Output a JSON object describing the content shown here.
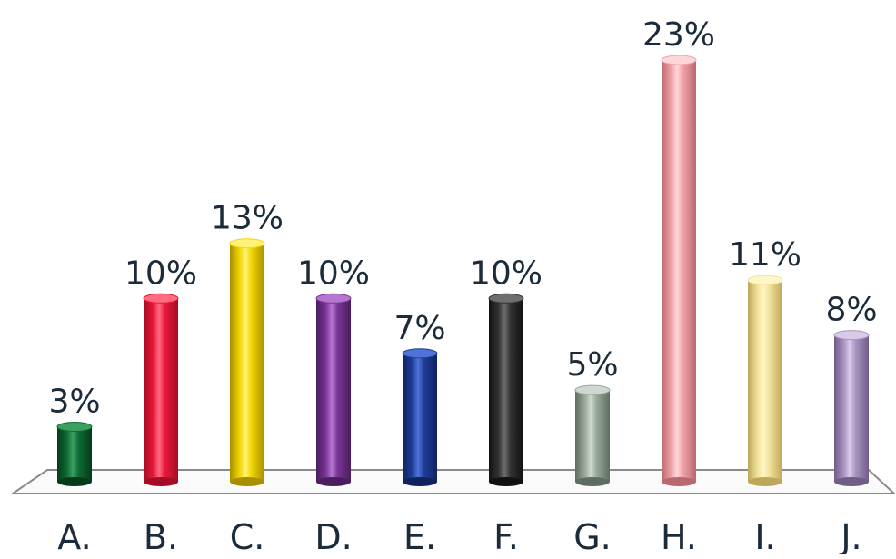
{
  "chart_data": {
    "type": "bar",
    "title": "",
    "xlabel": "",
    "ylabel": "",
    "categories": [
      "A.",
      "B.",
      "C.",
      "D.",
      "E.",
      "F.",
      "G.",
      "H.",
      "I.",
      "J."
    ],
    "values": [
      3,
      10,
      13,
      10,
      7,
      10,
      5,
      23,
      11,
      8
    ],
    "value_labels": [
      "3%",
      "10%",
      "13%",
      "10%",
      "7%",
      "10%",
      "5%",
      "23%",
      "11%",
      "8%"
    ],
    "unit": "%",
    "ylim": [
      0,
      23
    ],
    "grid": false,
    "legend": "none",
    "bar_style": "3d-cylinder",
    "colors": [
      "#0f6b34",
      "#e8183a",
      "#f2d600",
      "#7a3596",
      "#1f3e9a",
      "#333333",
      "#98a899",
      "#eea3a8",
      "#f2e29a",
      "#a894c0"
    ],
    "colors_dark": [
      "#063a1b",
      "#a40d25",
      "#a88f00",
      "#4a1d5e",
      "#10225e",
      "#111111",
      "#5f6d60",
      "#b8686e",
      "#bda75a",
      "#6f5d88"
    ],
    "colors_light": [
      "#3aa060",
      "#ff6b80",
      "#fff27a",
      "#b676d0",
      "#4f73d8",
      "#6e6e6e",
      "#cfd9cf",
      "#ffd6d8",
      "#fff6c8",
      "#d9cbe8"
    ]
  }
}
